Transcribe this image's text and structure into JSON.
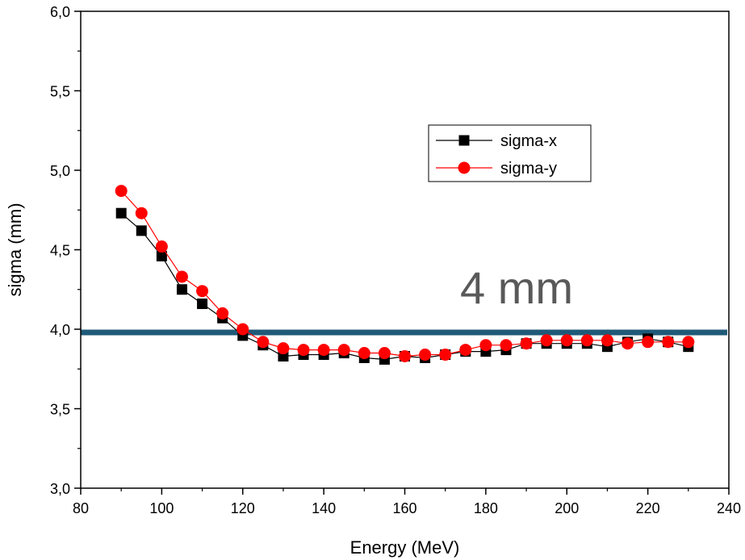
{
  "chart_data": {
    "type": "line",
    "title": "",
    "xlabel": "Energy (MeV)",
    "ylabel": "sigma (mm)",
    "xlim": [
      80,
      240
    ],
    "ylim": [
      3.0,
      6.0
    ],
    "x_ticks": [
      80,
      100,
      120,
      140,
      160,
      180,
      200,
      220,
      240
    ],
    "x_tick_labels": [
      "80",
      "100",
      "120",
      "140",
      "160",
      "180",
      "200",
      "220",
      "240"
    ],
    "y_ticks": [
      3.0,
      3.5,
      4.0,
      4.5,
      5.0,
      5.5,
      6.0
    ],
    "y_tick_labels": [
      "3,0",
      "3,5",
      "4,0",
      "4,5",
      "5,0",
      "5,5",
      "6,0"
    ],
    "grid": false,
    "legend_position": "top-right",
    "x": [
      90,
      95,
      100,
      105,
      110,
      115,
      120,
      125,
      130,
      135,
      140,
      145,
      150,
      155,
      160,
      165,
      170,
      175,
      180,
      185,
      190,
      195,
      200,
      205,
      210,
      215,
      220,
      225,
      230
    ],
    "series": [
      {
        "name": "sigma-x",
        "marker": "square",
        "color": "#000000",
        "values": [
          4.73,
          4.62,
          4.46,
          4.25,
          4.16,
          4.07,
          3.96,
          3.9,
          3.83,
          3.84,
          3.84,
          3.85,
          3.82,
          3.81,
          3.83,
          3.82,
          3.84,
          3.86,
          3.86,
          3.87,
          3.91,
          3.91,
          3.91,
          3.91,
          3.89,
          3.92,
          3.94,
          3.92,
          3.89
        ]
      },
      {
        "name": "sigma-y",
        "marker": "circle",
        "color": "#ff0000",
        "values": [
          4.87,
          4.73,
          4.52,
          4.33,
          4.24,
          4.1,
          4.0,
          3.92,
          3.88,
          3.87,
          3.87,
          3.87,
          3.85,
          3.85,
          3.83,
          3.84,
          3.84,
          3.87,
          3.9,
          3.9,
          3.91,
          3.93,
          3.93,
          3.93,
          3.93,
          3.91,
          3.92,
          3.92,
          3.92
        ]
      }
    ],
    "reference_line": {
      "y": 3.98,
      "color": "#1f5a78"
    },
    "annotation": {
      "text": "4 mm",
      "color": "#595959"
    }
  }
}
